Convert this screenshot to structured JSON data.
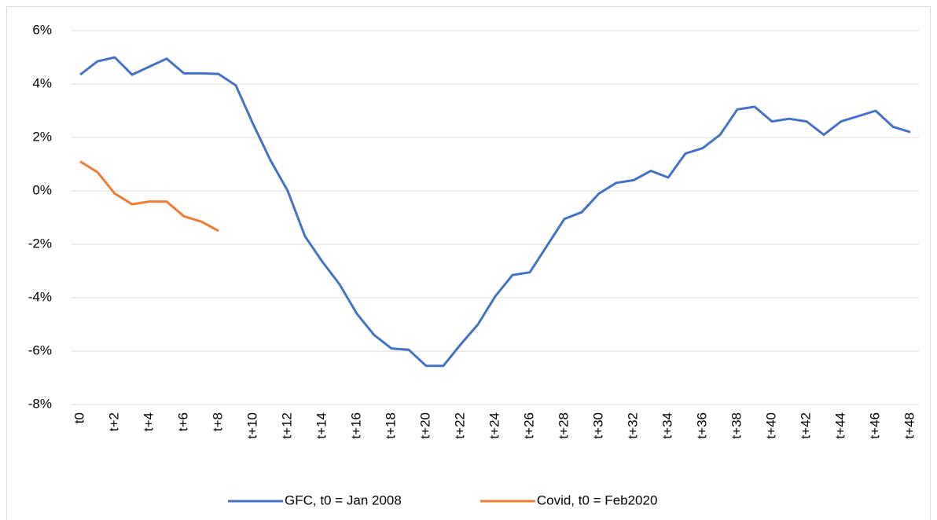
{
  "chart_data": {
    "type": "line",
    "categories": [
      "t0",
      null,
      "t+2",
      null,
      "t+4",
      null,
      "t+6",
      null,
      "t+8",
      null,
      "t+10",
      null,
      "t+12",
      null,
      "t+14",
      null,
      "t+16",
      null,
      "t+18",
      null,
      "t+20",
      null,
      "t+22",
      null,
      "t+24",
      null,
      "t+26",
      null,
      "t+28",
      null,
      "t+30",
      null,
      "t+32",
      null,
      "t+34",
      null,
      "t+36",
      null,
      "t+38",
      null,
      "t+40",
      null,
      "t+42",
      null,
      "t+44",
      null,
      "t+46",
      null,
      "t+48"
    ],
    "series": [
      {
        "name": "GFC, t0 = Jan 2008",
        "color": "#4472c4",
        "values": [
          4.35,
          4.85,
          5.0,
          4.35,
          4.65,
          4.95,
          4.4,
          4.4,
          4.38,
          3.95,
          2.5,
          1.15,
          0.0,
          -1.7,
          -2.65,
          -3.5,
          -4.6,
          -5.4,
          -5.9,
          -5.95,
          -6.55,
          -6.55,
          -5.75,
          -5.0,
          -3.95,
          -3.15,
          -3.05,
          -2.05,
          -1.05,
          -0.8,
          -0.1,
          0.3,
          0.4,
          0.75,
          0.5,
          1.4,
          1.6,
          2.1,
          3.05,
          3.15,
          2.6,
          2.7,
          2.6,
          2.1,
          2.6,
          2.8,
          3.0,
          2.4,
          2.2
        ]
      },
      {
        "name": "Covid, t0 = Feb2020",
        "color": "#ed7d31",
        "values": [
          1.1,
          0.7,
          -0.1,
          -0.5,
          -0.4,
          -0.4,
          -0.95,
          -1.15,
          -1.5,
          null,
          null,
          null,
          null,
          null,
          null,
          null,
          null,
          null,
          null,
          null,
          null,
          null,
          null,
          null,
          null,
          null,
          null,
          null,
          null,
          null,
          null,
          null,
          null,
          null,
          null,
          null,
          null,
          null,
          null,
          null,
          null,
          null,
          null,
          null,
          null,
          null,
          null,
          null,
          null
        ]
      }
    ],
    "ylim": [
      -8,
      6
    ],
    "yticks": [
      {
        "value": -8,
        "label": "-8%"
      },
      {
        "value": -6,
        "label": "-6%"
      },
      {
        "value": -4,
        "label": "-4%"
      },
      {
        "value": -2,
        "label": "-2%"
      },
      {
        "value": 0,
        "label": "0%"
      },
      {
        "value": 2,
        "label": "2%"
      },
      {
        "value": 4,
        "label": "4%"
      },
      {
        "value": 6,
        "label": "6%"
      }
    ],
    "grid": true,
    "legend": "bottom"
  }
}
